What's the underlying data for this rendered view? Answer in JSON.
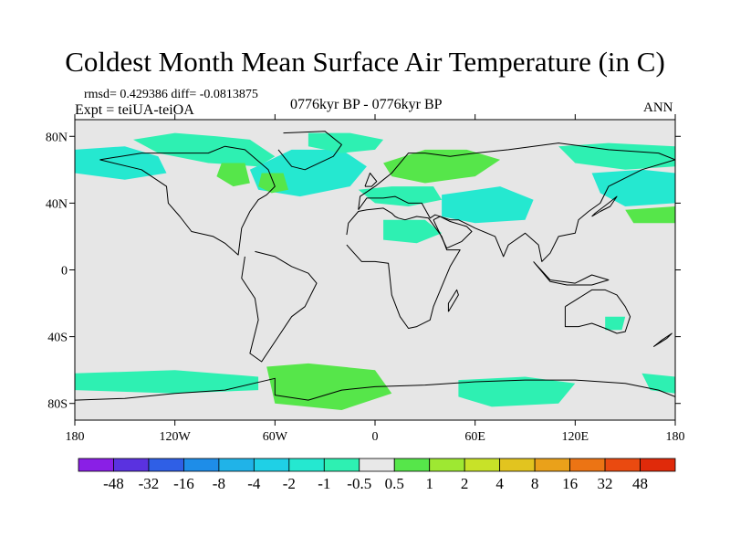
{
  "chart_data": {
    "type": "heatmap",
    "title": "Coldest Month Mean Surface Air Temperature (in C)",
    "stats_text": "rmsd= 0.429386 diff= -0.0813875",
    "experiment_text": "Expt = teiUA-teiOA",
    "period_text": "0776kyr BP - 0776kyr BP",
    "season_text": "ANN",
    "x_ticks": [
      {
        "value": -180,
        "label": "180"
      },
      {
        "value": -120,
        "label": "120W"
      },
      {
        "value": -60,
        "label": "60W"
      },
      {
        "value": 0,
        "label": "0"
      },
      {
        "value": 60,
        "label": "60E"
      },
      {
        "value": 120,
        "label": "120E"
      },
      {
        "value": 180,
        "label": "180"
      }
    ],
    "y_ticks": [
      {
        "value": 80,
        "label": "80N"
      },
      {
        "value": 40,
        "label": "40N"
      },
      {
        "value": 0,
        "label": "0"
      },
      {
        "value": -40,
        "label": "40S"
      },
      {
        "value": -80,
        "label": "80S"
      }
    ],
    "xlim": [
      -180,
      180
    ],
    "ylim": [
      -90,
      90
    ],
    "colorbar": {
      "levels": [
        "-48",
        "-32",
        "-16",
        "-8",
        "-4",
        "-2",
        "-1",
        "-0.5",
        "0.5",
        "1",
        "2",
        "4",
        "8",
        "16",
        "32",
        "48"
      ],
      "colors": [
        "#8a1fe6",
        "#5a32e0",
        "#2f5fe6",
        "#1e8de8",
        "#20b3e8",
        "#1fd0e6",
        "#25e8d0",
        "#2ef0b2",
        "#e8e8e8",
        "#56e64a",
        "#9ee832",
        "#c8e228",
        "#e2c41f",
        "#eaa11a",
        "#ec7414",
        "#ea4a10",
        "#e02a0a"
      ]
    },
    "regions": [
      {
        "name": "arctic-canada",
        "level_index": 7,
        "lon": [
          -145,
          -120,
          -95,
          -75,
          -60,
          -70,
          -100,
          -130
        ],
        "lat": [
          78,
          82,
          80,
          78,
          68,
          62,
          64,
          70
        ]
      },
      {
        "name": "alaska-pacific",
        "level_index": 6,
        "lon": [
          -180,
          -150,
          -130,
          -125,
          -150,
          -180
        ],
        "lat": [
          72,
          74,
          68,
          58,
          54,
          58
        ]
      },
      {
        "name": "north-atlantic",
        "level_index": 6,
        "lon": [
          -75,
          -50,
          -20,
          -5,
          -15,
          -45,
          -70
        ],
        "lat": [
          60,
          72,
          72,
          62,
          50,
          44,
          48
        ]
      },
      {
        "name": "greenland-sea",
        "level_index": 7,
        "lon": [
          -40,
          -15,
          5,
          0,
          -20,
          -40
        ],
        "lat": [
          82,
          82,
          78,
          72,
          70,
          74
        ]
      },
      {
        "name": "hudson",
        "level_index": 9,
        "lon": [
          -92,
          -78,
          -75,
          -85,
          -95
        ],
        "lat": [
          64,
          64,
          52,
          50,
          56
        ]
      },
      {
        "name": "labrador",
        "level_index": 9,
        "lon": [
          -68,
          -55,
          -52,
          -62,
          -70
        ],
        "lat": [
          58,
          58,
          48,
          46,
          50
        ]
      },
      {
        "name": "scandinavia-russia",
        "level_index": 9,
        "lon": [
          5,
          30,
          55,
          75,
          60,
          30,
          10
        ],
        "lat": [
          64,
          72,
          72,
          66,
          56,
          52,
          56
        ]
      },
      {
        "name": "europe-cyan",
        "level_index": 7,
        "lon": [
          -10,
          10,
          35,
          40,
          20,
          0
        ],
        "lat": [
          48,
          50,
          50,
          42,
          38,
          40
        ]
      },
      {
        "name": "central-asia",
        "level_index": 6,
        "lon": [
          40,
          75,
          95,
          90,
          60,
          40
        ],
        "lat": [
          45,
          50,
          42,
          30,
          28,
          32
        ]
      },
      {
        "name": "siberia-east",
        "level_index": 7,
        "lon": [
          110,
          140,
          180,
          180,
          150,
          120
        ],
        "lat": [
          74,
          76,
          74,
          62,
          60,
          64
        ]
      },
      {
        "name": "north-pacific-west",
        "level_index": 6,
        "lon": [
          130,
          160,
          180,
          180,
          150,
          135
        ],
        "lat": [
          58,
          60,
          58,
          40,
          38,
          46
        ]
      },
      {
        "name": "north-pacific-green",
        "level_index": 9,
        "lon": [
          150,
          180,
          180,
          155
        ],
        "lat": [
          36,
          38,
          28,
          28
        ]
      },
      {
        "name": "sahara",
        "level_index": 7,
        "lon": [
          5,
          30,
          40,
          25,
          5
        ],
        "lat": [
          30,
          30,
          22,
          16,
          18
        ]
      },
      {
        "name": "australia",
        "level_index": 7,
        "lon": [
          138,
          150,
          148,
          138
        ],
        "lat": [
          -28,
          -28,
          -36,
          -36
        ]
      },
      {
        "name": "southern-ocean-pacific",
        "level_index": 7,
        "lon": [
          -180,
          -120,
          -70,
          -70,
          -120,
          -180
        ],
        "lat": [
          -62,
          -60,
          -64,
          -72,
          -74,
          -72
        ]
      },
      {
        "name": "weddell-green",
        "level_index": 9,
        "lon": [
          -65,
          -40,
          0,
          10,
          -20,
          -60
        ],
        "lat": [
          -58,
          -56,
          -60,
          -74,
          -84,
          -80
        ]
      },
      {
        "name": "east-antarctic",
        "level_index": 7,
        "lon": [
          50,
          90,
          120,
          110,
          70,
          50
        ],
        "lat": [
          -66,
          -64,
          -68,
          -80,
          -82,
          -76
        ]
      },
      {
        "name": "ross-sea",
        "level_index": 7,
        "lon": [
          160,
          180,
          180,
          165
        ],
        "lat": [
          -62,
          -64,
          -74,
          -72
        ]
      }
    ],
    "coastlines": [
      {
        "name": "north-america",
        "lon": [
          -165,
          -140,
          -125,
          -124,
          -117,
          -110,
          -97,
          -90,
          -82,
          -80,
          -75,
          -70,
          -65,
          -60,
          -64,
          -78,
          -90,
          -100,
          -120,
          -140,
          -165
        ],
        "lat": [
          66,
          60,
          50,
          40,
          32,
          23,
          20,
          16,
          9,
          25,
          35,
          42,
          45,
          50,
          60,
          72,
          74,
          70,
          70,
          70,
          66
        ]
      },
      {
        "name": "south-america",
        "lon": [
          -78,
          -80,
          -72,
          -70,
          -75,
          -68,
          -58,
          -50,
          -42,
          -35,
          -40,
          -50,
          -60,
          -72
        ],
        "lat": [
          8,
          -5,
          -17,
          -30,
          -50,
          -55,
          -40,
          -28,
          -22,
          -8,
          -2,
          2,
          8,
          11
        ]
      },
      {
        "name": "greenland",
        "lon": [
          -55,
          -30,
          -20,
          -25,
          -42,
          -50,
          -58
        ],
        "lat": [
          82,
          83,
          75,
          68,
          60,
          62,
          72
        ]
      },
      {
        "name": "eurasia",
        "lon": [
          -10,
          -9,
          0,
          5,
          10,
          20,
          30,
          45,
          60,
          80,
          110,
          140,
          170,
          180,
          160,
          140,
          135,
          128,
          122,
          120,
          110,
          105,
          100,
          98,
          90,
          80,
          77,
          72,
          60,
          56,
          50,
          45,
          36,
          33,
          28,
          20,
          12,
          5,
          -5,
          -10
        ],
        "lat": [
          36,
          44,
          50,
          54,
          58,
          70,
          70,
          68,
          70,
          72,
          76,
          72,
          70,
          66,
          60,
          50,
          40,
          35,
          30,
          22,
          20,
          10,
          5,
          15,
          22,
          15,
          8,
          20,
          25,
          27,
          30,
          30,
          33,
          31,
          40,
          40,
          44,
          43,
          43,
          36
        ]
      },
      {
        "name": "africa",
        "lon": [
          -17,
          -16,
          -10,
          -5,
          5,
          10,
          12,
          14,
          18,
          25,
          32,
          40,
          43,
          51,
          45,
          40,
          35,
          33,
          25,
          20,
          15,
          10,
          8,
          0,
          -8,
          -17
        ],
        "lat": [
          21,
          28,
          35,
          36,
          37,
          34,
          32,
          31,
          30,
          32,
          31,
          20,
          12,
          12,
          2,
          -10,
          -22,
          -30,
          -34,
          -35,
          -28,
          -15,
          4,
          5,
          5,
          15
        ]
      },
      {
        "name": "arabia",
        "lon": [
          35,
          43,
          52,
          58,
          55,
          45,
          39,
          35
        ],
        "lat": [
          30,
          13,
          17,
          23,
          26,
          29,
          32,
          30
        ]
      },
      {
        "name": "australia",
        "lon": [
          114,
          114,
          122,
          130,
          138,
          145,
          150,
          153,
          150,
          145,
          138,
          130,
          122,
          114
        ],
        "lat": [
          -22,
          -34,
          -34,
          -32,
          -35,
          -38,
          -37,
          -28,
          -22,
          -15,
          -12,
          -12,
          -17,
          -22
        ]
      },
      {
        "name": "antarctica",
        "lon": [
          -180,
          -150,
          -120,
          -90,
          -60,
          -60,
          -40,
          -20,
          0,
          30,
          60,
          90,
          120,
          150,
          170,
          180
        ],
        "lat": [
          -78,
          -77,
          -74,
          -72,
          -65,
          -75,
          -78,
          -72,
          -70,
          -69,
          -67,
          -66,
          -66,
          -68,
          -72,
          -76
        ]
      },
      {
        "name": "british-isles",
        "lon": [
          -6,
          -3,
          1,
          -2,
          -6
        ],
        "lat": [
          50,
          58,
          53,
          50,
          50
        ]
      },
      {
        "name": "japan",
        "lon": [
          130,
          135,
          141,
          145,
          140,
          132,
          130
        ],
        "lat": [
          32,
          35,
          38,
          44,
          40,
          34,
          32
        ]
      },
      {
        "name": "madagascar",
        "lon": [
          44,
          50,
          49,
          44,
          44
        ],
        "lat": [
          -25,
          -15,
          -12,
          -20,
          -25
        ]
      },
      {
        "name": "new-zealand",
        "lon": [
          167,
          175,
          178,
          172,
          167
        ],
        "lat": [
          -46,
          -41,
          -38,
          -42,
          -46
        ]
      },
      {
        "name": "indonesia",
        "lon": [
          95,
          105,
          120,
          130,
          140,
          130,
          115,
          105,
          95
        ],
        "lat": [
          5,
          -6,
          -8,
          -3,
          -6,
          -9,
          -9,
          -7,
          5
        ]
      }
    ]
  }
}
